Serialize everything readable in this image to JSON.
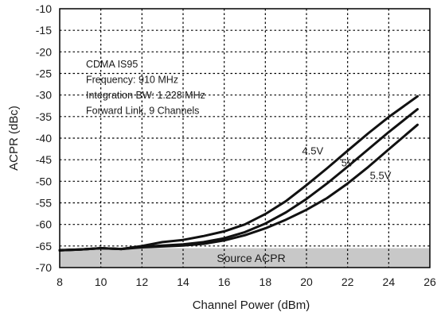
{
  "chart_data": {
    "type": "line",
    "xlabel": "Channel Power (dBm)",
    "ylabel": "ACPR (dBc)",
    "xlim": [
      8,
      26
    ],
    "ylim": [
      -70,
      -10
    ],
    "xticks": [
      "8",
      "10",
      "12",
      "14",
      "16",
      "18",
      "20",
      "22",
      "24",
      "26"
    ],
    "yticks": [
      "-10",
      "-15",
      "-20",
      "-25",
      "-30",
      "-35",
      "-40",
      "-45",
      "-50",
      "-55",
      "-60",
      "-65",
      "-70"
    ],
    "grid": true,
    "annotation_lines": [
      "CDMA IS95",
      "Frequency: 910 MHz",
      "Integration BW: 1.228 MHz",
      "Forward Link, 9 Channels"
    ],
    "source_band": {
      "label": "Source ACPR",
      "y_top": -65.5,
      "color": "#c8c8c8"
    },
    "series": [
      {
        "name": "4.5V",
        "x": [
          8,
          9,
          10,
          11,
          12,
          13,
          14,
          15,
          16,
          17,
          18,
          19,
          20,
          21,
          22,
          23,
          24,
          25.4
        ],
        "y": [
          -66,
          -65.8,
          -65.5,
          -65.7,
          -65,
          -64.1,
          -63.6,
          -62.7,
          -61.6,
          -60,
          -57.6,
          -54.6,
          -50.9,
          -47,
          -42.9,
          -38.9,
          -35.1,
          -30.3
        ]
      },
      {
        "name": "5V",
        "x": [
          8,
          9,
          10,
          11,
          12,
          13,
          14,
          15,
          16,
          17,
          18,
          19,
          20,
          21,
          22,
          23,
          24,
          25.4
        ],
        "y": [
          -66,
          -65.8,
          -65.5,
          -65.7,
          -65.2,
          -64.9,
          -64.6,
          -64.1,
          -63.2,
          -61.8,
          -59.8,
          -57.2,
          -54.1,
          -50.5,
          -46.6,
          -42.6,
          -38.6,
          -33.3
        ]
      },
      {
        "name": "5.5V",
        "x": [
          8,
          9,
          10,
          11,
          12,
          13,
          14,
          15,
          16,
          17,
          18,
          19,
          20,
          21,
          22,
          23,
          24,
          25.4
        ],
        "y": [
          -66,
          -65.8,
          -65.5,
          -65.7,
          -65.3,
          -65.1,
          -64.9,
          -64.5,
          -63.7,
          -62.5,
          -60.9,
          -58.9,
          -56.6,
          -53.9,
          -50.5,
          -46.7,
          -42.6,
          -36.9
        ]
      }
    ],
    "series_label_positions": [
      {
        "name": "4.5V",
        "x": 20.3,
        "y": -43.8
      },
      {
        "name": "5V",
        "x": 22.0,
        "y": -46.5
      },
      {
        "name": "5.5V",
        "x": 23.6,
        "y": -49.5
      }
    ]
  }
}
